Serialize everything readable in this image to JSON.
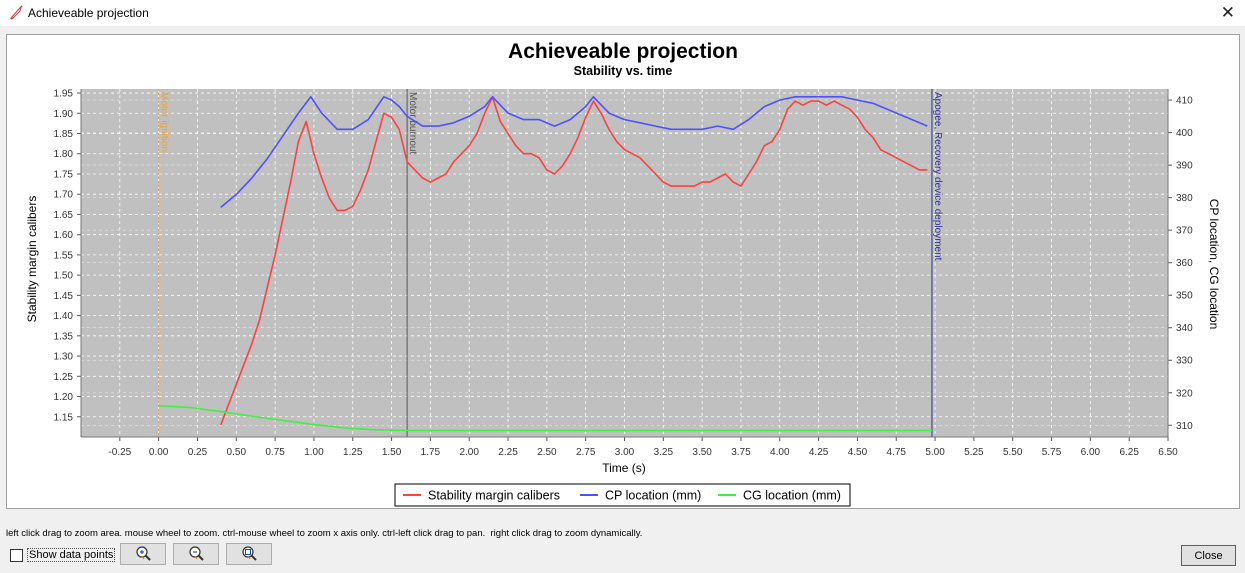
{
  "window": {
    "title": "Achieveable projection",
    "close_glyph": "✕"
  },
  "chart_data": {
    "type": "line",
    "title": "Achieveable projection",
    "subtitle": "Stability vs. time",
    "xlabel": "Time (s)",
    "ylabel": "Stability margin calibers",
    "ylabel_right": "CP location, CG location",
    "xlim": [
      -0.5,
      6.5
    ],
    "ylim": [
      1.1,
      1.96
    ],
    "ylim_right": [
      306.4,
      413.4
    ],
    "x_ticks": [
      "-0.25",
      "0.00",
      "0.25",
      "0.50",
      "0.75",
      "1.00",
      "1.25",
      "1.50",
      "1.75",
      "2.00",
      "2.25",
      "2.50",
      "2.75",
      "3.00",
      "3.25",
      "3.50",
      "3.75",
      "4.00",
      "4.25",
      "4.50",
      "4.75",
      "5.00",
      "5.25",
      "5.50",
      "5.75",
      "6.00",
      "6.25",
      "6.50"
    ],
    "y_ticks": [
      "1.15",
      "1.20",
      "1.25",
      "1.30",
      "1.35",
      "1.40",
      "1.45",
      "1.50",
      "1.55",
      "1.60",
      "1.65",
      "1.70",
      "1.75",
      "1.80",
      "1.85",
      "1.90",
      "1.95"
    ],
    "y_ticks_right": [
      "310",
      "320",
      "330",
      "340",
      "350",
      "360",
      "370",
      "380",
      "390",
      "400",
      "410"
    ],
    "grid": true,
    "legend_position": "bottom",
    "events": [
      {
        "label": "Motor ignition",
        "x": 0.0,
        "color": "#e8a040"
      },
      {
        "label": "Motor burnout",
        "x": 1.6,
        "color": "#555555"
      },
      {
        "label": "Apogee, Recovery device deployment",
        "x": 4.98,
        "color": "#333399"
      }
    ],
    "series": [
      {
        "name": "Stability margin calibers",
        "axis": "left",
        "color": "#ff4040",
        "x": [
          0.4,
          0.45,
          0.5,
          0.55,
          0.6,
          0.65,
          0.7,
          0.75,
          0.8,
          0.85,
          0.9,
          0.95,
          1.0,
          1.05,
          1.1,
          1.15,
          1.2,
          1.25,
          1.3,
          1.35,
          1.4,
          1.45,
          1.5,
          1.55,
          1.6,
          1.65,
          1.7,
          1.75,
          1.8,
          1.85,
          1.9,
          1.95,
          2.0,
          2.05,
          2.1,
          2.15,
          2.2,
          2.25,
          2.3,
          2.35,
          2.4,
          2.45,
          2.5,
          2.55,
          2.6,
          2.65,
          2.7,
          2.75,
          2.8,
          2.85,
          2.9,
          2.95,
          3.0,
          3.05,
          3.1,
          3.15,
          3.2,
          3.25,
          3.3,
          3.35,
          3.4,
          3.45,
          3.5,
          3.55,
          3.6,
          3.65,
          3.7,
          3.75,
          3.8,
          3.85,
          3.9,
          3.95,
          4.0,
          4.05,
          4.1,
          4.15,
          4.2,
          4.25,
          4.3,
          4.35,
          4.4,
          4.45,
          4.5,
          4.55,
          4.6,
          4.65,
          4.7,
          4.75,
          4.8,
          4.85,
          4.9,
          4.95
        ],
        "values": [
          1.13,
          1.18,
          1.23,
          1.28,
          1.33,
          1.39,
          1.47,
          1.55,
          1.64,
          1.73,
          1.83,
          1.88,
          1.8,
          1.74,
          1.69,
          1.66,
          1.66,
          1.67,
          1.71,
          1.76,
          1.83,
          1.9,
          1.89,
          1.86,
          1.78,
          1.76,
          1.74,
          1.73,
          1.74,
          1.75,
          1.78,
          1.8,
          1.82,
          1.85,
          1.9,
          1.94,
          1.88,
          1.85,
          1.82,
          1.8,
          1.8,
          1.79,
          1.76,
          1.75,
          1.77,
          1.8,
          1.84,
          1.89,
          1.93,
          1.9,
          1.86,
          1.83,
          1.81,
          1.8,
          1.79,
          1.77,
          1.75,
          1.73,
          1.72,
          1.72,
          1.72,
          1.72,
          1.73,
          1.73,
          1.74,
          1.75,
          1.73,
          1.72,
          1.75,
          1.78,
          1.82,
          1.83,
          1.86,
          1.91,
          1.93,
          1.92,
          1.93,
          1.93,
          1.92,
          1.93,
          1.92,
          1.91,
          1.89,
          1.86,
          1.84,
          1.81,
          1.8,
          1.79,
          1.78,
          1.77,
          1.76,
          1.76
        ]
      },
      {
        "name": "CP location (mm)",
        "axis": "right",
        "color": "#5050ff",
        "x": [
          0.4,
          0.5,
          0.6,
          0.7,
          0.8,
          0.9,
          0.98,
          1.05,
          1.15,
          1.25,
          1.35,
          1.45,
          1.5,
          1.55,
          1.6,
          1.7,
          1.8,
          1.9,
          2.0,
          2.1,
          2.15,
          2.25,
          2.35,
          2.45,
          2.55,
          2.65,
          2.75,
          2.8,
          2.9,
          3.0,
          3.1,
          3.2,
          3.3,
          3.4,
          3.5,
          3.6,
          3.7,
          3.8,
          3.9,
          4.0,
          4.1,
          4.2,
          4.3,
          4.4,
          4.5,
          4.6,
          4.7,
          4.8,
          4.9,
          4.95
        ],
        "values": [
          377,
          381,
          386,
          392,
          399,
          406,
          411,
          406,
          401,
          401,
          404,
          411,
          410,
          408,
          405,
          402,
          402,
          403,
          405,
          408,
          411,
          406,
          404,
          404,
          402,
          404,
          408,
          411,
          406,
          404,
          403,
          402,
          401,
          401,
          401,
          402,
          401,
          404,
          408,
          410,
          411,
          411,
          411,
          411,
          410,
          409,
          407,
          405,
          403,
          402
        ]
      },
      {
        "name": "CG location (mm)",
        "axis": "right",
        "color": "#44ee44",
        "x": [
          0.0,
          0.2,
          0.4,
          0.6,
          0.8,
          1.0,
          1.2,
          1.4,
          1.6,
          2.0,
          3.0,
          4.0,
          4.98
        ],
        "values": [
          316,
          315.5,
          314.2,
          312.8,
          311.5,
          310.2,
          309.2,
          308.6,
          308.4,
          308.4,
          308.4,
          308.4,
          308.4
        ]
      }
    ]
  }
}
